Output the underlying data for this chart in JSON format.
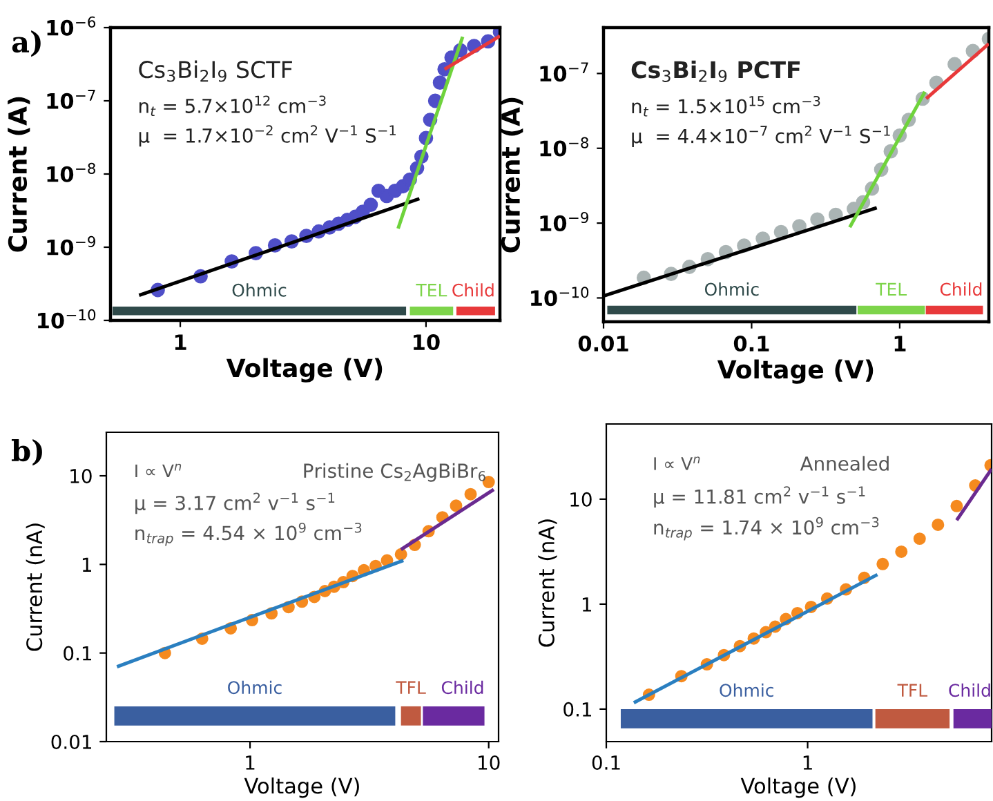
{
  "chart_data": [
    {
      "type": "scatter",
      "xlabel": "Voltage (V)",
      "ylabel": "Current (A)",
      "log": "xy",
      "marker": "circle",
      "grid": false,
      "xlim": [
        0.52,
        20
      ],
      "ylim": [
        1e-10,
        1e-06
      ],
      "xticks": [
        1,
        10
      ],
      "yticks": [
        {
          "value": 1e-10,
          "label": "10$^{−10}$"
        },
        {
          "value": 1e-09,
          "label": "10$^{−9}$"
        },
        {
          "value": 1e-08,
          "label": "10$^{−8}$"
        },
        {
          "value": 1e-07,
          "label": "10$^{−7}$"
        },
        {
          "value": 1e-06,
          "label": "10$^{−6}$"
        }
      ],
      "annotations": [
        "a)",
        "Cs$_{3}$Bi$_{2}$I$_{9}$ SCTF",
        "n$_{t}$ = 5.7×10$^{12}$ cm$^{−3}$",
        "μ  = 1.7×10$^{−2}$ cm$^{2}$ V$^{−1}$ S$^{−1}$"
      ],
      "series": [
        {
          "color": "#4f4fc8",
          "x": [
            0.81,
            1.21,
            1.62,
            2.03,
            2.43,
            2.84,
            3.26,
            3.66,
            4.05,
            4.41,
            4.79,
            5.16,
            5.53,
            5.96,
            6.41,
            6.92,
            7.48,
            8.06,
            8.6,
            9.2,
            9.58,
            10,
            10.4,
            10.9,
            11.4,
            11.9,
            12.7,
            13.8,
            15.7,
            17.9,
            20
          ],
          "values": [
            2.6e-10,
            4e-10,
            6.4e-10,
            8.3e-10,
            1.06e-09,
            1.2e-09,
            1.43e-09,
            1.64e-09,
            1.86e-09,
            2.1e-09,
            2.36e-09,
            2.6e-09,
            3.05e-09,
            3.8e-09,
            5.9e-09,
            5e-09,
            5.9e-09,
            6.8e-09,
            8.4e-09,
            1.2e-08,
            1.73e-08,
            3.1e-08,
            5.5e-08,
            1e-07,
            1.77e-07,
            2.7e-07,
            3.9e-07,
            4.9e-07,
            5.6e-07,
            6.5e-07,
            8.7e-07
          ]
        },
        {
          "type": "line",
          "marker": "none",
          "color": "#000000",
          "x": [
            0.68,
            9.4
          ],
          "values": [
            2.2e-10,
            4.6e-09
          ]
        },
        {
          "type": "line",
          "marker": "none",
          "color": "#6fd33c",
          "x": [
            7.7,
            14.1
          ],
          "values": [
            1.8e-09,
            7.5e-07
          ]
        },
        {
          "type": "line",
          "marker": "none",
          "color": "#e8393a",
          "x": [
            11.9,
            20
          ],
          "values": [
            2.7e-07,
            7.7e-07
          ]
        },
        {
          "type": "line",
          "marker": "none",
          "name": "Ohmic",
          "color": "#2f4a4a",
          "x": [
            0.53,
            8.3
          ],
          "values": [
            1.35e-10,
            1.35e-10
          ]
        },
        {
          "type": "line",
          "marker": "none",
          "name": "TEL",
          "color": "#7dd44a",
          "x": [
            8.6,
            12.9
          ],
          "values": [
            1.35e-10,
            1.35e-10
          ]
        },
        {
          "type": "line",
          "marker": "none",
          "name": "Child",
          "color": "#e8393a",
          "x": [
            13.3,
            19.1
          ],
          "values": [
            1.35e-10,
            1.35e-10
          ]
        }
      ]
    },
    {
      "type": "scatter",
      "xlabel": "Voltage (V)",
      "ylabel": "Current (A)",
      "log": "xy",
      "marker": "circle",
      "grid": false,
      "xlim": [
        0.01,
        4
      ],
      "ylim": [
        4.8e-11,
        4.1e-07
      ],
      "xticks": [
        0.01,
        0.1,
        1
      ],
      "yticks": [
        {
          "value": 1e-10,
          "label": "10$^{−10}$"
        },
        {
          "value": 1e-09,
          "label": "10$^{−9}$"
        },
        {
          "value": 1e-08,
          "label": "10$^{−8}$"
        },
        {
          "value": 1e-07,
          "label": "10$^{−7}$"
        }
      ],
      "annotations": [
        "Cs$_{3}$Bi$_{2}$I$_{9}$ PCTF",
        "n$_{t}$ = 1.5×10$^{15}$ cm$^{−3}$",
        "μ  = 4.4×10$^{−7}$ cm$^{2}$ V$^{−1}$ S$^{−1}$"
      ],
      "series": [
        {
          "color": "#aab4b4",
          "x": [
            0.0187,
            0.0286,
            0.038,
            0.0506,
            0.067,
            0.089,
            0.119,
            0.158,
            0.21,
            0.278,
            0.37,
            0.49,
            0.566,
            0.65,
            0.75,
            0.87,
            1.0,
            1.15,
            1.43,
            1.77,
            2.35,
            3.12,
            4.0
          ],
          "values": [
            1.86e-10,
            2.1e-10,
            2.6e-10,
            3.3e-10,
            4.1e-10,
            5e-10,
            6.2e-10,
            7.6e-10,
            9.1e-10,
            1.12e-09,
            1.29e-09,
            1.55e-09,
            1.9e-09,
            2.9e-09,
            5.2e-09,
            9.1e-09,
            1.48e-08,
            2.4e-08,
            4.6e-08,
            7.5e-08,
            1.33e-07,
            2e-07,
            2.9e-07
          ]
        },
        {
          "type": "line",
          "marker": "none",
          "color": "#000000",
          "x": [
            0.01,
            0.7
          ],
          "values": [
            1.06e-10,
            1.6e-09
          ]
        },
        {
          "type": "line",
          "marker": "none",
          "color": "#6fd33c",
          "x": [
            0.46,
            1.48
          ],
          "values": [
            8.8e-10,
            5.7e-08
          ]
        },
        {
          "type": "line",
          "marker": "none",
          "color": "#e8393a",
          "x": [
            1.51,
            4.0
          ],
          "values": [
            4.6e-08,
            2.5e-07
          ]
        },
        {
          "type": "line",
          "marker": "none",
          "name": "Ohmic",
          "color": "#2f4a4a",
          "x": [
            0.0106,
            0.51
          ],
          "values": [
            6.9e-11,
            6.9e-11
          ]
        },
        {
          "type": "line",
          "marker": "none",
          "name": "TEL",
          "color": "#7dd44a",
          "x": [
            0.52,
            1.48
          ],
          "values": [
            6.9e-11,
            6.9e-11
          ]
        },
        {
          "type": "line",
          "marker": "none",
          "name": "Child",
          "color": "#e8393a",
          "x": [
            1.5,
            3.65
          ],
          "values": [
            6.9e-11,
            6.9e-11
          ]
        }
      ]
    },
    {
      "type": "scatter",
      "xlabel": "Voltage (V)",
      "ylabel": "Current (nA)",
      "log": "xy",
      "marker": "circle",
      "grid": false,
      "xlim": [
        0.25,
        11
      ],
      "ylim": [
        0.01,
        31
      ],
      "xticks": [
        1,
        10
      ],
      "yticks": [
        0.01,
        0.1,
        1,
        10
      ],
      "annotations": [
        "b)",
        "Pristine Cs$_{2}$AgBiBr$_{6}$",
        "I ∝ V$^{n}$",
        "μ = 3.17 cm$^{2}$ v$^{−1}$ s$^{−1}$",
        "n$_{trap}$ = 4.54 × 10$^{9}$ cm$^{−3}$"
      ],
      "series": [
        {
          "color": "#f58a1f",
          "x": [
            0.44,
            0.63,
            0.83,
            1.02,
            1.23,
            1.45,
            1.65,
            1.86,
            2.06,
            2.25,
            2.46,
            2.69,
            3.0,
            3.36,
            3.75,
            4.29,
            4.9,
            5.6,
            6.4,
            7.3,
            8.4,
            10
          ],
          "values": [
            0.1,
            0.145,
            0.19,
            0.235,
            0.28,
            0.33,
            0.38,
            0.43,
            0.5,
            0.56,
            0.63,
            0.74,
            0.86,
            0.96,
            1.11,
            1.3,
            1.66,
            2.37,
            3.4,
            4.6,
            6.2,
            8.5
          ]
        },
        {
          "type": "line",
          "marker": "none",
          "color": "#2a7fc0",
          "x": [
            0.277,
            4.39
          ],
          "values": [
            0.07,
            1.11
          ]
        },
        {
          "type": "line",
          "marker": "none",
          "color": "#6a2a90",
          "x": [
            4.29,
            10.5
          ],
          "values": [
            1.47,
            7.0
          ]
        },
        {
          "type": "line",
          "marker": "none",
          "name": "Ohmic",
          "color": "#3a5fa0",
          "x": [
            0.27,
            4.06
          ],
          "values": [
            0.0195,
            0.0195
          ]
        },
        {
          "type": "line",
          "marker": "none",
          "name": "TFL",
          "color": "#c05a40",
          "x": [
            4.29,
            5.2
          ],
          "values": [
            0.0195,
            0.0195
          ]
        },
        {
          "type": "line",
          "marker": "none",
          "name": "Child",
          "color": "#6a2aa0",
          "x": [
            5.3,
            9.6
          ],
          "values": [
            0.0195,
            0.0195
          ]
        }
      ]
    },
    {
      "type": "scatter",
      "xlabel": "Voltage (V)",
      "ylabel": "Current (nA)",
      "log": "xy",
      "marker": "circle",
      "grid": false,
      "xlim": [
        0.1,
        8.2
      ],
      "ylim": [
        0.049,
        52
      ],
      "xticks": [
        0.1,
        1
      ],
      "yticks": [
        0.1,
        1,
        10
      ],
      "annotations": [
        "Annealed",
        "I ∝ V$^{n}$",
        "μ = 11.81 cm$^{2}$ v$^{−1}$ s$^{−1}$",
        "n$_{trap}$ = 1.74 × 10$^{9}$ cm$^{−3}$"
      ],
      "series": [
        {
          "color": "#f58a1f",
          "x": [
            0.163,
            0.236,
            0.316,
            0.384,
            0.461,
            0.54,
            0.62,
            0.69,
            0.78,
            0.89,
            1.04,
            1.25,
            1.55,
            1.91,
            2.36,
            2.92,
            3.6,
            4.44,
            5.5,
            6.8,
            8.1
          ],
          "values": [
            0.137,
            0.206,
            0.267,
            0.327,
            0.398,
            0.47,
            0.54,
            0.61,
            0.72,
            0.82,
            0.94,
            1.13,
            1.38,
            1.78,
            2.41,
            3.16,
            4.2,
            5.7,
            8.6,
            13.5,
            21
          ]
        },
        {
          "type": "line",
          "marker": "none",
          "color": "#2a7fc0",
          "x": [
            0.137,
            2.22
          ],
          "values": [
            0.115,
            1.91
          ]
        },
        {
          "type": "line",
          "marker": "none",
          "color": "#6a2a90",
          "x": [
            5.5,
            8.2
          ],
          "values": [
            6.3,
            19.4
          ]
        },
        {
          "type": "line",
          "marker": "none",
          "name": "Ohmic",
          "color": "#3a5fa0",
          "x": [
            0.118,
            2.1
          ],
          "values": [
            0.081,
            0.081
          ]
        },
        {
          "type": "line",
          "marker": "none",
          "name": "TFL",
          "color": "#c05a40",
          "x": [
            2.17,
            5.07
          ],
          "values": [
            0.081,
            0.081
          ]
        },
        {
          "type": "line",
          "marker": "none",
          "name": "Child",
          "color": "#6a2aa0",
          "x": [
            5.3,
            8.2
          ],
          "values": [
            0.081,
            0.081
          ]
        }
      ]
    }
  ]
}
